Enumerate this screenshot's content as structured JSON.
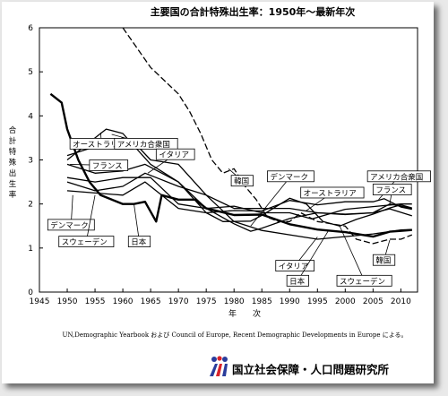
{
  "chart_data": {
    "type": "line",
    "title": "主要国の合計特殊出生率：1950年〜最新年次",
    "xlabel": "年　　次",
    "ylabel": "合計特殊出生率",
    "xlim": [
      1945,
      2013
    ],
    "ylim": [
      0,
      6
    ],
    "x_ticks": [
      1945,
      1950,
      1955,
      1960,
      1965,
      1970,
      1975,
      1980,
      1985,
      1990,
      1995,
      2000,
      2005,
      2010
    ],
    "y_ticks": [
      0,
      1,
      2,
      3,
      4,
      5,
      6
    ],
    "grid": false,
    "series": [
      {
        "name": "韓国",
        "style": "dashed",
        "x": [
          1960,
          1965,
          1970,
          1972,
          1974,
          1976,
          1978,
          1980,
          1982,
          1984,
          1986,
          1988,
          1990,
          1992,
          1995,
          2000,
          2002,
          2005,
          2008,
          2010,
          2012
        ],
        "y": [
          6.0,
          5.1,
          4.5,
          4.1,
          3.6,
          3.0,
          2.7,
          2.8,
          2.4,
          2.1,
          1.7,
          1.6,
          1.6,
          1.8,
          1.6,
          1.5,
          1.2,
          1.1,
          1.2,
          1.2,
          1.3
        ]
      },
      {
        "name": "日本",
        "style": "bold",
        "x": [
          1947,
          1949,
          1950,
          1952,
          1954,
          1956,
          1958,
          1960,
          1962,
          1964,
          1966,
          1967,
          1970,
          1973,
          1975,
          1980,
          1985,
          1990,
          1995,
          2000,
          2005,
          2008,
          2010,
          2012
        ],
        "y": [
          4.5,
          4.3,
          3.7,
          3.0,
          2.5,
          2.2,
          2.1,
          2.0,
          2.0,
          2.05,
          1.6,
          2.2,
          2.1,
          2.1,
          1.9,
          1.75,
          1.76,
          1.54,
          1.42,
          1.36,
          1.26,
          1.37,
          1.39,
          1.41
        ]
      },
      {
        "name": "アメリカ合衆国",
        "style": "solid",
        "x": [
          1950,
          1955,
          1957,
          1960,
          1965,
          1970,
          1975,
          1980,
          1985,
          1990,
          1995,
          2000,
          2005,
          2007,
          2010,
          2012
        ],
        "y": [
          3.0,
          3.5,
          3.7,
          3.6,
          2.9,
          2.5,
          1.8,
          1.85,
          1.84,
          2.08,
          1.98,
          2.05,
          2.05,
          2.12,
          1.93,
          1.88
        ]
      },
      {
        "name": "オーストラリア",
        "style": "solid",
        "x": [
          1950,
          1955,
          1960,
          1962,
          1965,
          1970,
          1975,
          1980,
          1985,
          1990,
          1995,
          2000,
          2005,
          2008,
          2012
        ],
        "y": [
          3.1,
          3.3,
          3.5,
          3.4,
          3.0,
          2.9,
          2.2,
          1.9,
          1.9,
          1.9,
          1.8,
          1.76,
          1.8,
          2.0,
          1.9
        ]
      },
      {
        "name": "フランス",
        "style": "solid",
        "x": [
          1950,
          1955,
          1960,
          1964,
          1970,
          1975,
          1980,
          1985,
          1990,
          1994,
          2000,
          2005,
          2010,
          2012
        ],
        "y": [
          2.9,
          2.7,
          2.75,
          2.9,
          2.5,
          1.9,
          1.95,
          1.8,
          1.8,
          1.66,
          1.88,
          1.94,
          2.0,
          2.0
        ]
      },
      {
        "name": "イタリア",
        "style": "solid",
        "x": [
          1950,
          1955,
          1960,
          1964,
          1970,
          1975,
          1980,
          1985,
          1990,
          1995,
          2000,
          2005,
          2010,
          2012
        ],
        "y": [
          2.5,
          2.3,
          2.4,
          2.7,
          2.4,
          2.2,
          1.6,
          1.4,
          1.3,
          1.2,
          1.26,
          1.32,
          1.41,
          1.42
        ]
      },
      {
        "name": "デンマーク",
        "style": "solid",
        "x": [
          1950,
          1955,
          1960,
          1965,
          1970,
          1975,
          1980,
          1983,
          1985,
          1990,
          1995,
          2000,
          2005,
          2008,
          2012
        ],
        "y": [
          2.6,
          2.5,
          2.6,
          2.6,
          2.0,
          1.9,
          1.55,
          1.38,
          1.45,
          1.67,
          1.8,
          1.77,
          1.8,
          1.89,
          1.73
        ]
      },
      {
        "name": "スウェーデン",
        "style": "solid",
        "x": [
          1950,
          1955,
          1960,
          1964,
          1970,
          1975,
          1978,
          1983,
          1985,
          1990,
          1993,
          1996,
          1999,
          2002,
          2005,
          2008,
          2010,
          2012
        ],
        "y": [
          2.3,
          2.25,
          2.2,
          2.5,
          1.9,
          1.8,
          1.6,
          1.61,
          1.74,
          2.13,
          2.0,
          1.6,
          1.5,
          1.65,
          1.77,
          1.91,
          1.98,
          1.91
        ]
      }
    ],
    "source_text": "UN,Demographic Yearbook および Council of Europe, Recent Demographic Developments in Europe による。"
  },
  "logo": {
    "text": "国立社会保障・人口問題研究所",
    "color": "#2a3d9c"
  }
}
